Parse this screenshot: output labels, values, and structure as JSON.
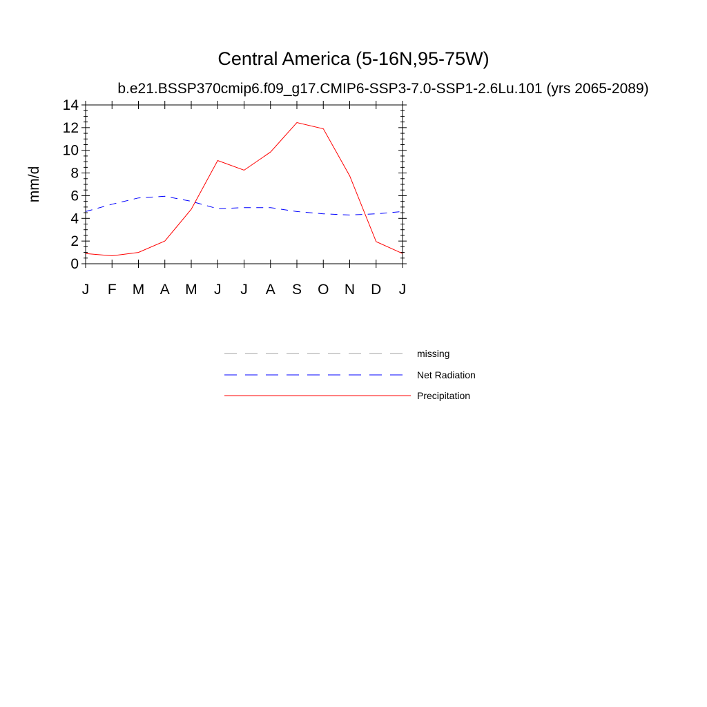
{
  "chart_data": {
    "type": "line",
    "title": "Central America (5-16N,95-75W)",
    "subtitle": "b.e21.BSSP370cmip6.f09_g17.CMIP6-SSP3-7.0-SSP1-2.6Lu.101 (yrs 2065-2089)",
    "xlabel": "",
    "ylabel": "mm/d",
    "categories": [
      "J",
      "F",
      "M",
      "A",
      "M",
      "J",
      "J",
      "A",
      "S",
      "O",
      "N",
      "D",
      "J"
    ],
    "ylim": [
      0,
      14
    ],
    "yticks": [
      0,
      2,
      4,
      6,
      8,
      10,
      12,
      14
    ],
    "grid": false,
    "legend_position": "bottom-center",
    "legend": [
      {
        "label": "missing",
        "color": "#a0a0a0",
        "style": "dashed"
      },
      {
        "label": "Net Radiation",
        "color": "#0000ff",
        "style": "dashed"
      },
      {
        "label": "Precipitation",
        "color": "#ff0000",
        "style": "solid"
      }
    ],
    "series": [
      {
        "name": "Net Radiation",
        "color": "#0000ff",
        "style": "dashed",
        "values": [
          4.6,
          5.25,
          5.8,
          5.95,
          5.5,
          4.85,
          4.95,
          4.95,
          4.6,
          4.4,
          4.3,
          4.4,
          4.6
        ]
      },
      {
        "name": "Precipitation",
        "color": "#ff0000",
        "style": "solid",
        "values": [
          0.9,
          0.7,
          1.0,
          2.0,
          4.8,
          9.1,
          8.25,
          9.85,
          12.45,
          11.9,
          7.75,
          1.95,
          0.9
        ]
      }
    ]
  }
}
